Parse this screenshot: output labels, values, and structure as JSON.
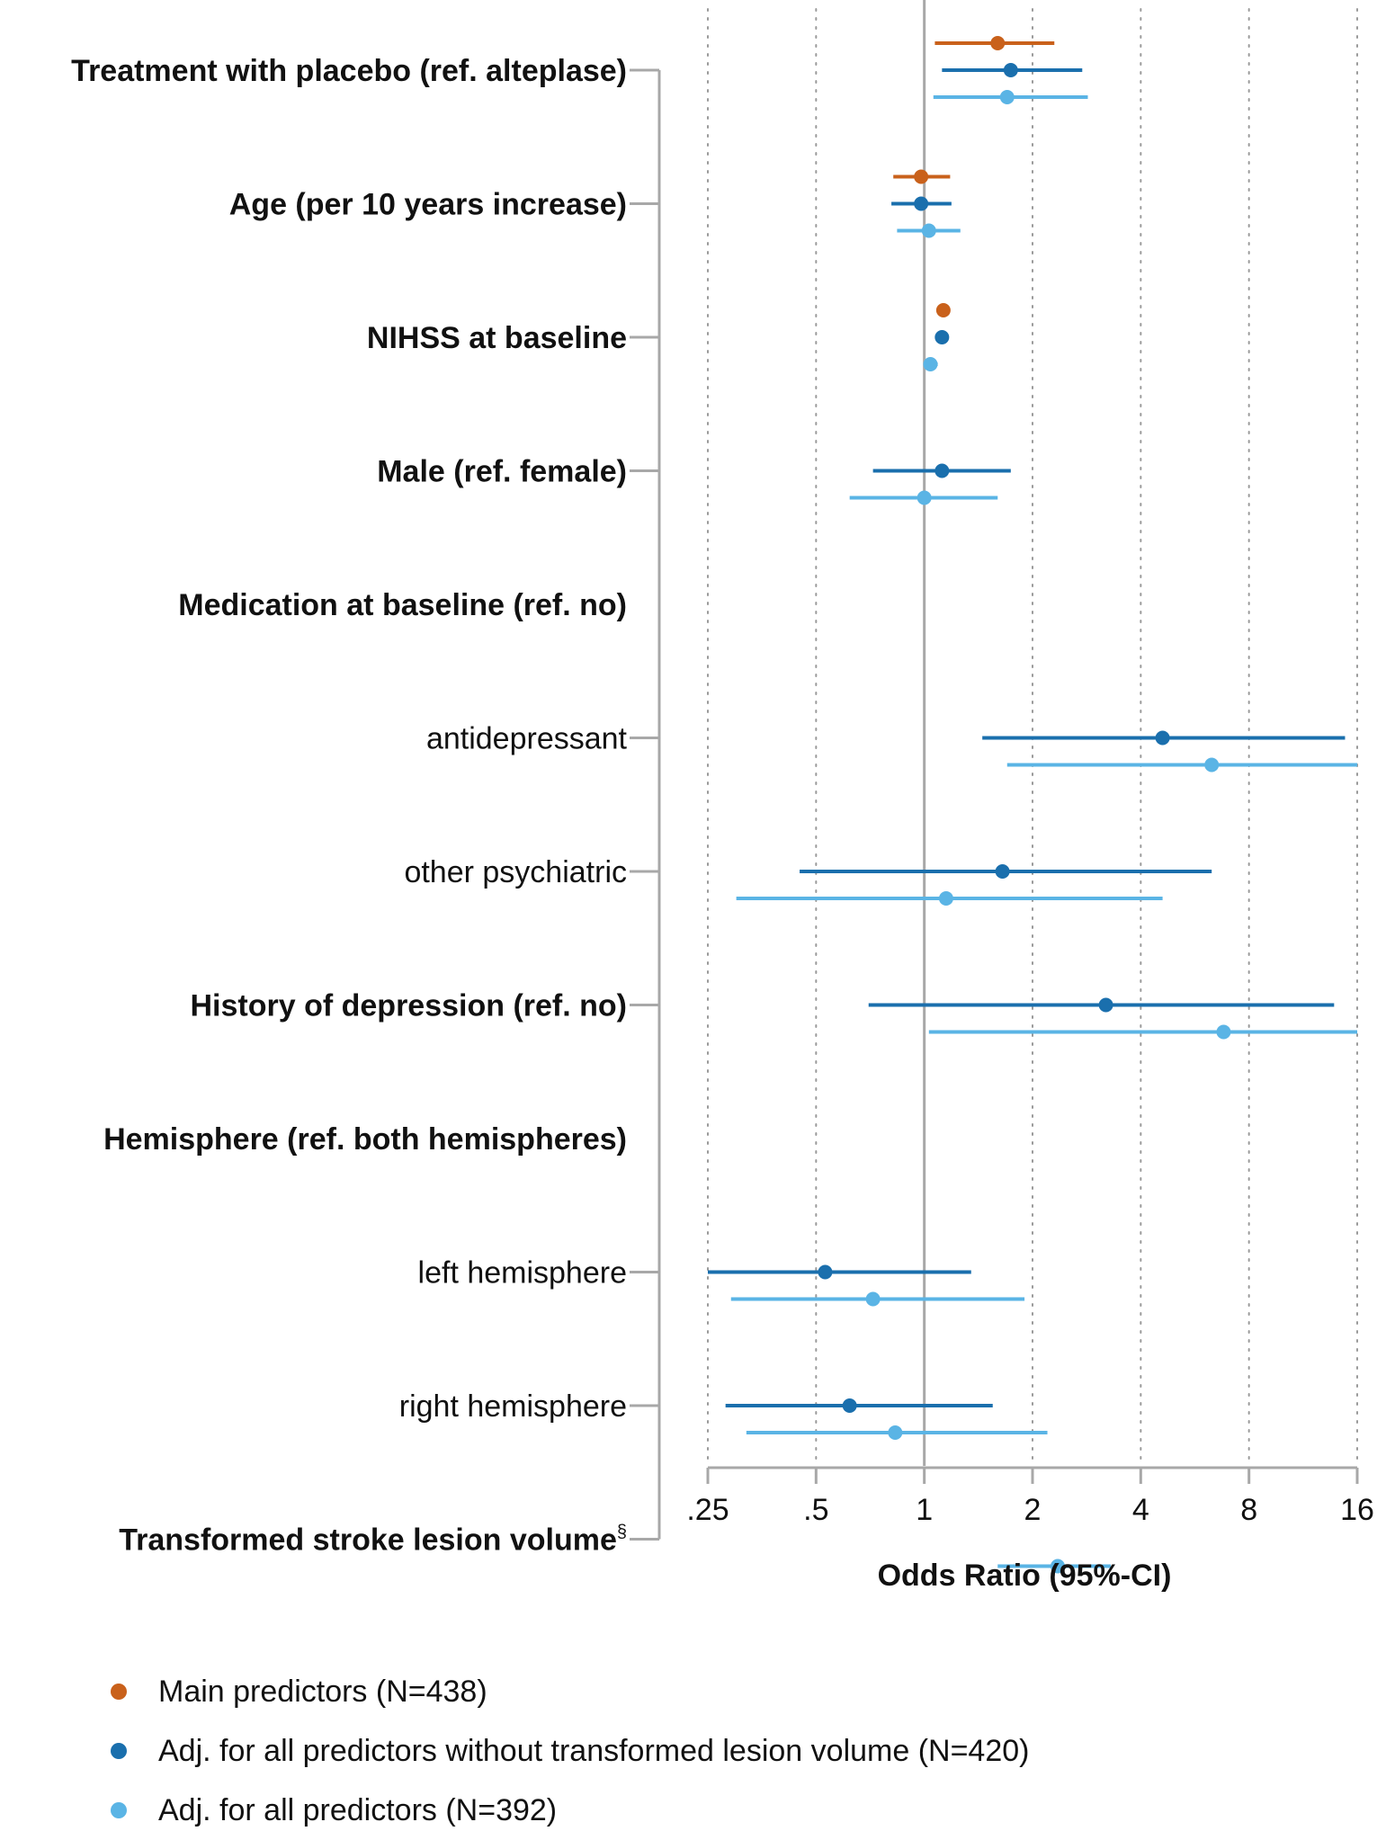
{
  "chart_data": {
    "type": "forest",
    "title": "",
    "xlabel": "Odds Ratio (95%-CI)",
    "ylabel": "",
    "x_scale": "log2",
    "xlim": [
      0.25,
      16
    ],
    "xticks": [
      {
        "value": 0.25,
        "label": ".25"
      },
      {
        "value": 0.5,
        "label": ".5"
      },
      {
        "value": 1,
        "label": "1"
      },
      {
        "value": 2,
        "label": "2"
      },
      {
        "value": 4,
        "label": "4"
      },
      {
        "value": 8,
        "label": "8"
      },
      {
        "value": 16,
        "label": "16"
      }
    ],
    "reference_line": 1,
    "grid": "vertical dotted",
    "legend_position": "bottom",
    "series": [
      {
        "name": "Main predictors (N=438)",
        "color": "#c9611b"
      },
      {
        "name": "Adj. for all predictors without transformed lesion volume (N=420)",
        "color": "#1a6fad"
      },
      {
        "name": "Adj. for all predictors (N=392)",
        "color": "#5ab4e5"
      }
    ],
    "rows": [
      {
        "label": "Treatment with placebo (ref. alteplase)",
        "bold": true,
        "tick": true,
        "estimates": [
          {
            "series": 0,
            "or": 1.6,
            "lo": 1.07,
            "hi": 2.3
          },
          {
            "series": 1,
            "or": 1.74,
            "lo": 1.12,
            "hi": 2.75
          },
          {
            "series": 2,
            "or": 1.7,
            "lo": 1.06,
            "hi": 2.85
          }
        ]
      },
      {
        "label": "Age (per 10 years increase)",
        "bold": true,
        "tick": true,
        "estimates": [
          {
            "series": 0,
            "or": 0.98,
            "lo": 0.82,
            "hi": 1.18
          },
          {
            "series": 1,
            "or": 0.98,
            "lo": 0.81,
            "hi": 1.19
          },
          {
            "series": 2,
            "or": 1.03,
            "lo": 0.84,
            "hi": 1.26
          }
        ]
      },
      {
        "label": "NIHSS at baseline",
        "bold": true,
        "tick": true,
        "estimates": [
          {
            "series": 0,
            "or": 1.13,
            "lo": 1.1,
            "hi": 1.17
          },
          {
            "series": 1,
            "or": 1.12,
            "lo": 1.09,
            "hi": 1.16
          },
          {
            "series": 2,
            "or": 1.04,
            "lo": 1.0,
            "hi": 1.09
          }
        ]
      },
      {
        "label": "Male (ref. female)",
        "bold": true,
        "tick": true,
        "estimates": [
          {
            "series": 1,
            "or": 1.12,
            "lo": 0.72,
            "hi": 1.74
          },
          {
            "series": 2,
            "or": 1.0,
            "lo": 0.62,
            "hi": 1.6
          }
        ]
      },
      {
        "label": "Medication at baseline (ref. no)",
        "bold": true,
        "tick": false,
        "estimates": []
      },
      {
        "label": "antidepressant",
        "bold": false,
        "tick": true,
        "estimates": [
          {
            "series": 1,
            "or": 4.6,
            "lo": 1.45,
            "hi": 14.8
          },
          {
            "series": 2,
            "or": 6.3,
            "lo": 1.7,
            "hi": 16
          }
        ]
      },
      {
        "label": "other psychiatric",
        "bold": false,
        "tick": true,
        "estimates": [
          {
            "series": 1,
            "or": 1.65,
            "lo": 0.45,
            "hi": 6.3
          },
          {
            "series": 2,
            "or": 1.15,
            "lo": 0.3,
            "hi": 4.6
          }
        ]
      },
      {
        "label": "History of depression (ref. no)",
        "bold": true,
        "tick": true,
        "estimates": [
          {
            "series": 1,
            "or": 3.2,
            "lo": 0.7,
            "hi": 13.8
          },
          {
            "series": 2,
            "or": 6.8,
            "lo": 1.03,
            "hi": 16
          }
        ]
      },
      {
        "label": "Hemisphere (ref. both hemispheres)",
        "bold": true,
        "tick": false,
        "estimates": []
      },
      {
        "label": "left hemisphere",
        "bold": false,
        "tick": true,
        "estimates": [
          {
            "series": 1,
            "or": 0.53,
            "lo": 0.25,
            "hi": 1.35
          },
          {
            "series": 2,
            "or": 0.72,
            "lo": 0.29,
            "hi": 1.9
          }
        ]
      },
      {
        "label": "right hemisphere",
        "bold": false,
        "tick": true,
        "estimates": [
          {
            "series": 1,
            "or": 0.62,
            "lo": 0.28,
            "hi": 1.55
          },
          {
            "series": 2,
            "or": 0.83,
            "lo": 0.32,
            "hi": 2.2
          }
        ]
      },
      {
        "label": "Transformed stroke lesion volume",
        "label_sup": "§",
        "bold": true,
        "tick": true,
        "estimates": [
          {
            "series": 2,
            "or": 2.35,
            "lo": 1.6,
            "hi": 3.3
          }
        ]
      }
    ]
  }
}
